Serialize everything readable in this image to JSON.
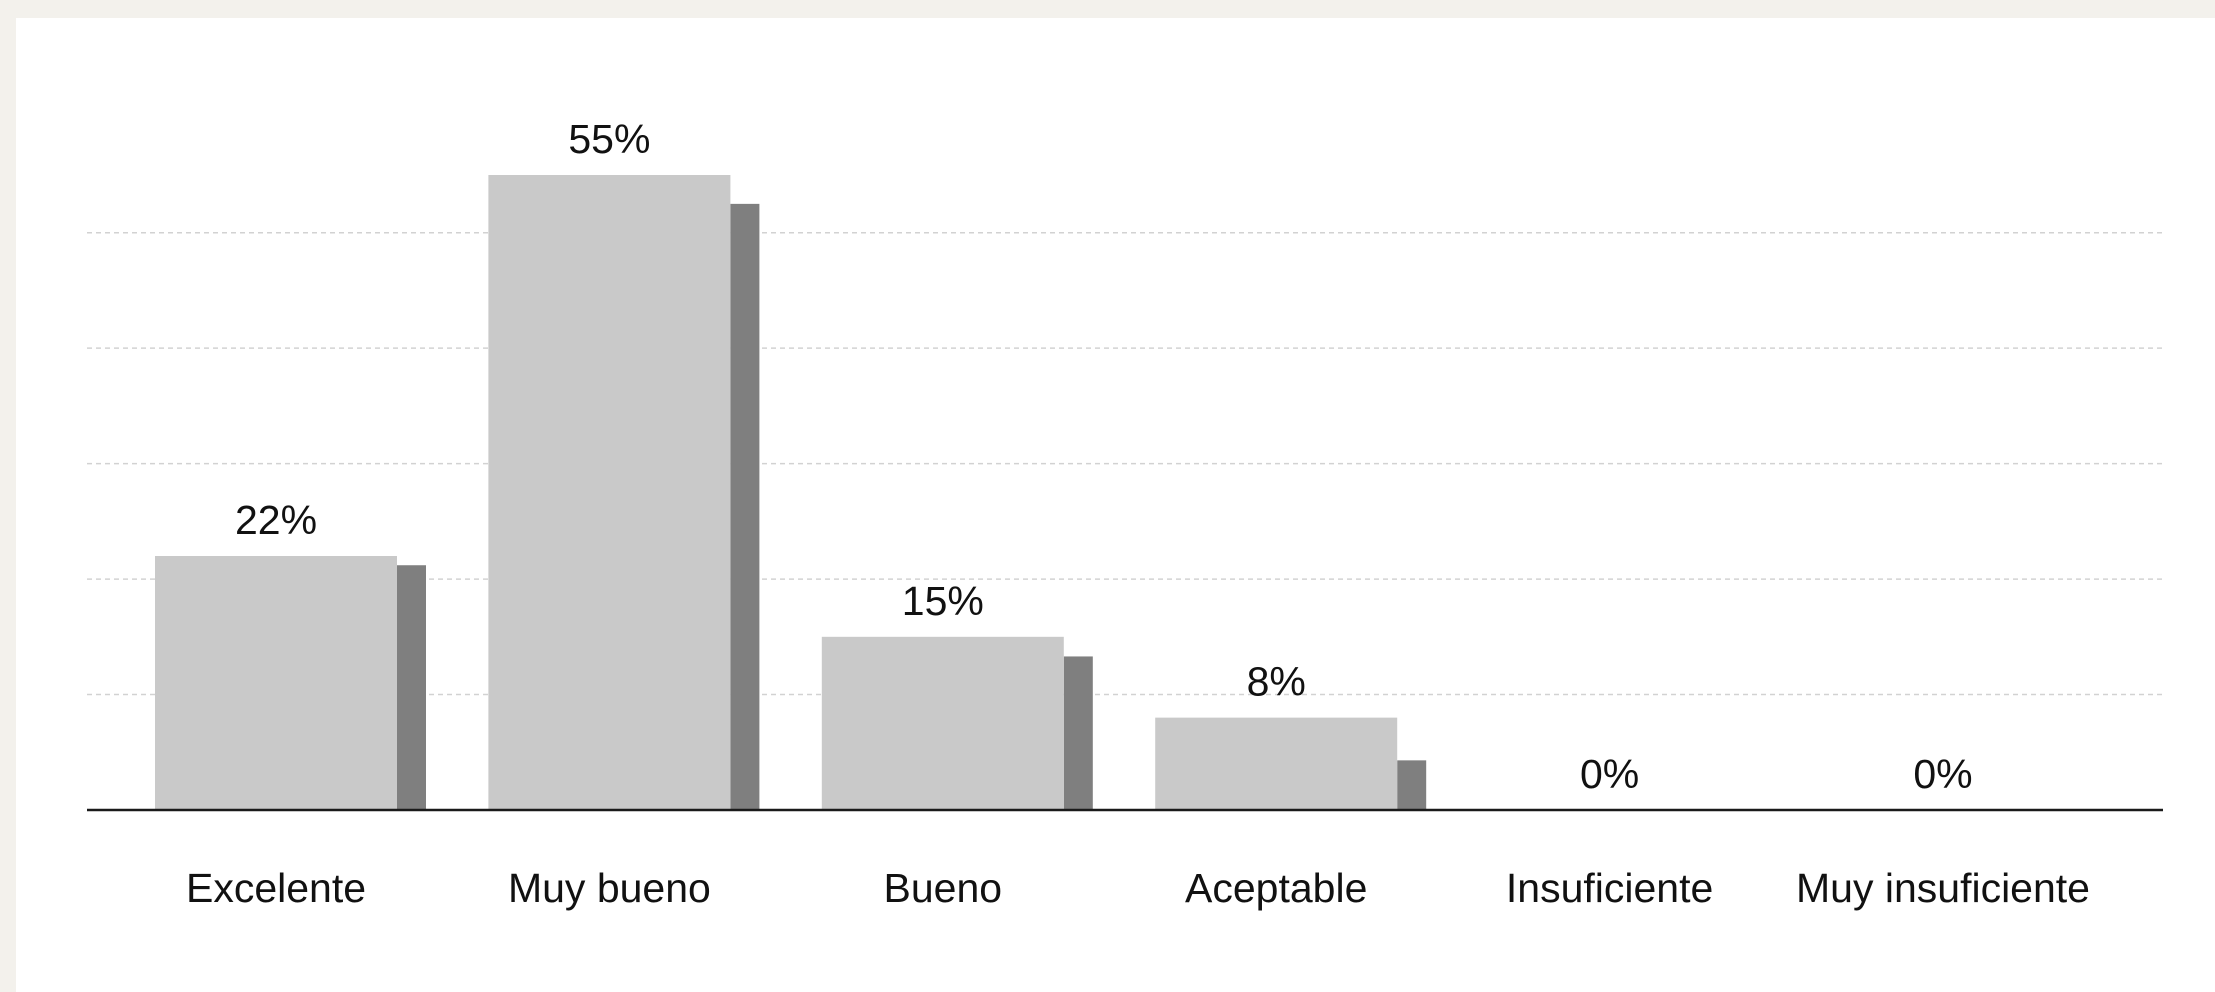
{
  "chart_data": {
    "type": "bar",
    "categories": [
      "Excelente",
      "Muy bueno",
      "Bueno",
      "Aceptable",
      "Insuficiente",
      "Muy insuficiente"
    ],
    "series": [
      {
        "values": [
          22,
          55,
          15,
          8,
          0,
          0
        ],
        "color": "#c9c9c9"
      },
      {
        "values": [
          21.2,
          52.5,
          13.3,
          4.3,
          0,
          0
        ],
        "color": "#7f7f7f"
      }
    ],
    "value_labels": [
      "22%",
      "55%",
      "15%",
      "8%",
      "0%",
      "0%"
    ],
    "ylim": [
      0,
      60
    ],
    "y_gridlines": [
      10,
      20,
      30,
      40,
      50
    ],
    "grid": true,
    "legend": "none",
    "title": "",
    "xlabel": "",
    "ylabel": ""
  }
}
